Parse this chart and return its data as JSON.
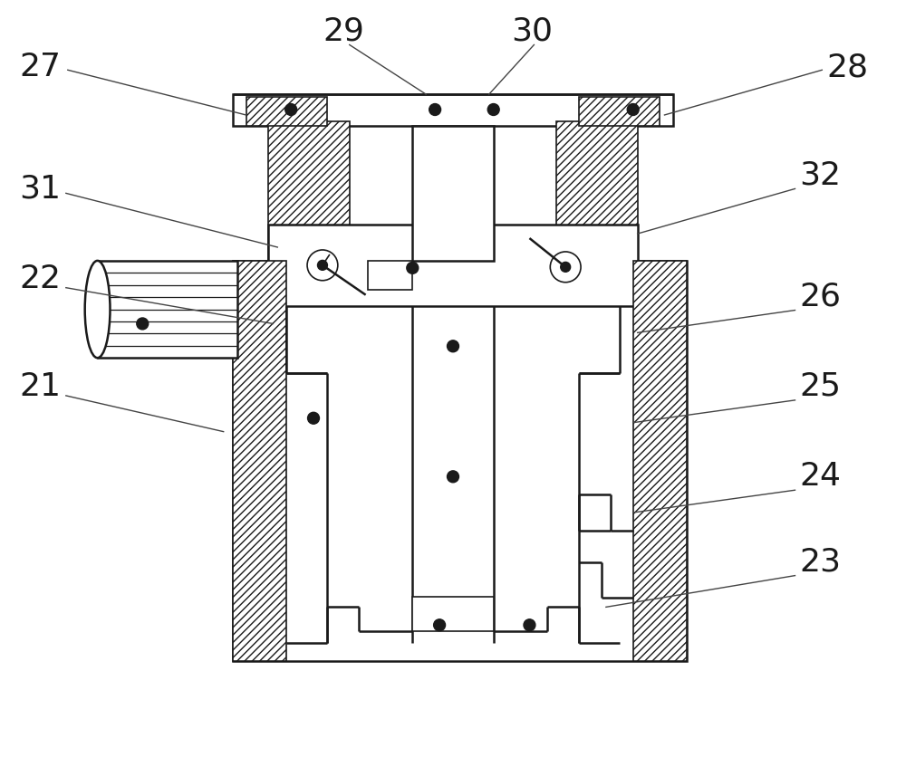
{
  "bg_color": "#ffffff",
  "line_color": "#1a1a1a",
  "label_color": "#1a1a1a",
  "label_fontsize": 26,
  "figsize": [
    10.0,
    8.47
  ],
  "dpi": 100
}
